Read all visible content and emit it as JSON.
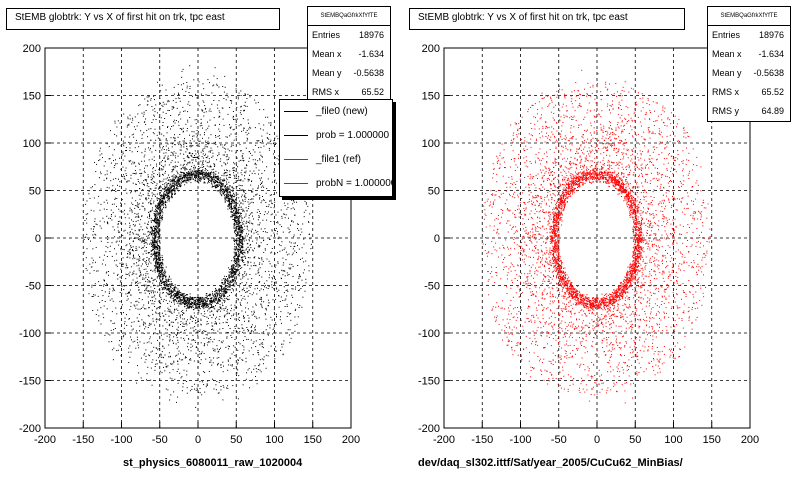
{
  "chart_data": [
    {
      "type": "scatter",
      "title": "StEMB globtrk: Y vs X of first hit on trk, tpc east",
      "xlim": [
        -200,
        200
      ],
      "ylim": [
        -200,
        200
      ],
      "xticks": [
        "-200",
        "-150",
        "-100",
        "-50",
        "0",
        "50",
        "100",
        "150",
        "200"
      ],
      "yticks": [
        "200",
        "150",
        "100",
        "50",
        "0",
        "-50",
        "-100",
        "-150",
        "-200"
      ],
      "grid": true,
      "marker_color": "#000000",
      "stats": {
        "header": "StEMBQaGfrkXfYfTE",
        "rows": [
          {
            "label": "Entries",
            "value": "18976"
          },
          {
            "label": "Mean x",
            "value": "-1.634"
          },
          {
            "label": "Mean y",
            "value": "-0.5638"
          },
          {
            "label": "RMS x",
            "value": "65.52"
          }
        ]
      },
      "legend": {
        "placement": "top-right",
        "entries": [
          {
            "label": "_file0 (new)",
            "color": "#000000"
          },
          {
            "label": "prob = 1.000000",
            "color": "#000000"
          },
          {
            "label": "_file1 (ref)",
            "color": "#ff0000"
          },
          {
            "label": "probN = 1.000000",
            "color": "#ff0000"
          }
        ]
      },
      "xlabel": "st_physics_6080011_raw_1020004",
      "distribution": {
        "inner_hole_half_width_x": 50,
        "inner_hole_half_height_y": 62,
        "center_x": -1.634,
        "center_y": -0.5638,
        "outer_extent": 165
      }
    },
    {
      "type": "scatter",
      "title": "StEMB globtrk: Y vs X of first hit on trk, tpc east",
      "xlim": [
        -200,
        200
      ],
      "ylim": [
        -200,
        200
      ],
      "xticks": [
        "-200",
        "-150",
        "-100",
        "-50",
        "0",
        "50",
        "100",
        "150",
        "200"
      ],
      "yticks": [
        "200",
        "150",
        "100",
        "50",
        "0",
        "-50",
        "-100",
        "-150",
        "-200"
      ],
      "grid": true,
      "marker_color": "#ff0000",
      "stats": {
        "header": "StEMBQaGfrkXfYfTE",
        "rows": [
          {
            "label": "Entries",
            "value": "18976"
          },
          {
            "label": "Mean x",
            "value": "-1.634"
          },
          {
            "label": "Mean y",
            "value": "-0.5638"
          },
          {
            "label": "RMS x",
            "value": "65.52"
          },
          {
            "label": "RMS y",
            "value": "64.89"
          }
        ]
      },
      "xlabel": "dev/daq_sl302.ittf/Sat/year_2005/CuCu62_MinBias/",
      "distribution": {
        "inner_hole_half_width_x": 50,
        "inner_hole_half_height_y": 62,
        "center_x": -1.634,
        "center_y": -0.5638,
        "outer_extent": 165
      }
    }
  ]
}
